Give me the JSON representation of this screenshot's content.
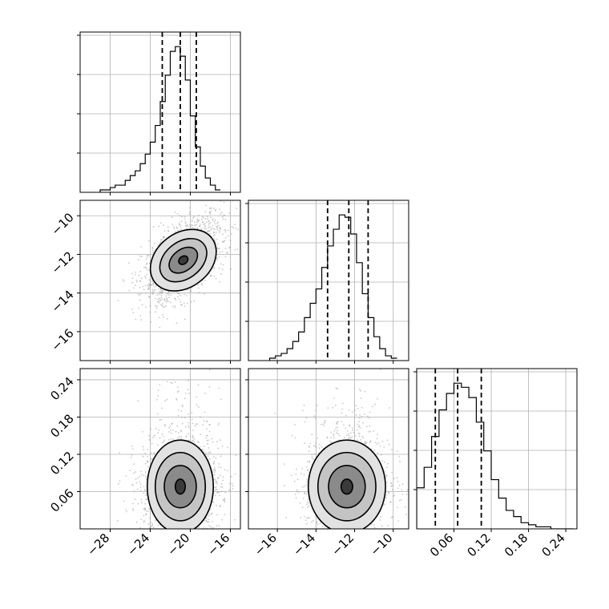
{
  "chart_data": {
    "type": "corner",
    "title": "",
    "params": [
      {
        "xlim": [
          -31,
          -15
        ],
        "ticks": [
          -28,
          -24,
          -20,
          -16
        ],
        "quantiles": [
          -22.8,
          -21.0,
          -19.4
        ],
        "hist_edges_lo": -29,
        "hist_step": 0.5,
        "hist_counts": [
          1,
          1,
          2,
          3,
          3,
          5,
          7,
          9,
          12,
          16,
          21,
          28,
          38,
          49,
          59,
          61,
          57,
          47,
          32,
          19,
          11,
          6,
          3,
          1
        ]
      },
      {
        "xlim": [
          -17.5,
          -9.2
        ],
        "ticks": [
          -16,
          -14,
          -12,
          -10
        ],
        "quantiles": [
          -13.4,
          -12.3,
          -11.3
        ],
        "hist_edges_lo": -16.4,
        "hist_step": 0.3,
        "hist_counts": [
          1,
          2,
          3,
          5,
          8,
          12,
          18,
          24,
          30,
          39,
          48,
          55,
          61,
          60,
          53,
          41,
          28,
          18,
          10,
          5,
          2,
          1
        ]
      },
      {
        "xlim": [
          0.0,
          0.258
        ],
        "ticks": [
          0.06,
          0.12,
          0.18,
          0.24
        ],
        "quantiles": [
          0.03,
          0.066,
          0.104
        ],
        "hist_edges_lo": 0.0,
        "hist_step": 0.012,
        "hist_counts": [
          20,
          30,
          45,
          58,
          66,
          71,
          69,
          64,
          52,
          38,
          24,
          15,
          9,
          6,
          3,
          2,
          1,
          1,
          0,
          0,
          0
        ]
      }
    ],
    "panels": [
      {
        "row": 1,
        "col": 0,
        "xlim": [
          -31,
          -15
        ],
        "ylim": [
          -17.5,
          -9.2
        ],
        "xticks": [
          -28,
          -24,
          -20,
          -16
        ],
        "yticks": [
          -16,
          -14,
          -12,
          -10
        ],
        "yticklabels": [
          "−16",
          "−14",
          "−12",
          "−10"
        ],
        "center": [
          -20.7,
          -12.3
        ],
        "contours": [
          {
            "rx": 3.6,
            "ry": 1.4,
            "rot": -38
          },
          {
            "rx": 2.6,
            "ry": 0.95,
            "rot": -38
          },
          {
            "rx": 1.6,
            "ry": 0.55,
            "rot": -38
          },
          {
            "rx": 0.5,
            "ry": 0.2,
            "rot": -38
          }
        ],
        "spread": [
          2.0,
          1.1
        ],
        "corr": 0.55
      },
      {
        "row": 2,
        "col": 0,
        "xlim": [
          -31,
          -15
        ],
        "ylim": [
          0.0,
          0.258
        ],
        "xticks": [
          -28,
          -24,
          -20,
          -16
        ],
        "yticks": [
          0.06,
          0.12,
          0.18,
          0.24
        ],
        "yticklabels": [
          "0.06",
          "0.12",
          "0.18",
          "0.24"
        ],
        "xticklabels": [
          "−28",
          "−24",
          "−20",
          "−16"
        ],
        "center": [
          -21.0,
          0.068
        ],
        "contours": [
          {
            "rx": 3.3,
            "ry": 0.075,
            "rot": 0
          },
          {
            "rx": 2.5,
            "ry": 0.055,
            "rot": 0
          },
          {
            "rx": 1.6,
            "ry": 0.034,
            "rot": 0
          },
          {
            "rx": 0.5,
            "ry": 0.012,
            "rot": 0
          }
        ],
        "spread": [
          2.0,
          0.04
        ],
        "corr": 0.05
      },
      {
        "row": 2,
        "col": 1,
        "xlim": [
          -17.5,
          -9.2
        ],
        "ylim": [
          0.0,
          0.258
        ],
        "xticks": [
          -16,
          -14,
          -12,
          -10
        ],
        "yticks": [
          0.06,
          0.12,
          0.18,
          0.24
        ],
        "xticklabels": [
          "−16",
          "−14",
          "−12",
          "−10"
        ],
        "center": [
          -12.4,
          0.068
        ],
        "contours": [
          {
            "rx": 2.0,
            "ry": 0.075,
            "rot": 0
          },
          {
            "rx": 1.5,
            "ry": 0.055,
            "rot": 0
          },
          {
            "rx": 0.95,
            "ry": 0.034,
            "rot": 0
          },
          {
            "rx": 0.3,
            "ry": 0.012,
            "rot": 0
          }
        ],
        "spread": [
          1.1,
          0.04
        ],
        "corr": 0.05
      }
    ],
    "diag_xticklabels": [
      "0.06",
      "0.12",
      "0.18",
      "0.24"
    ],
    "grid": true,
    "legend": "none"
  }
}
